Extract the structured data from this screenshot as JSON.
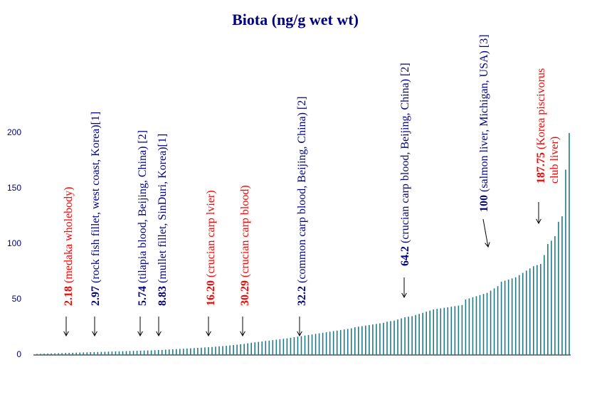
{
  "chart_data": {
    "type": "bar",
    "title": "Biota (ng/g wet wt)",
    "color": "#1f7a86",
    "ylim": [
      0,
      200
    ],
    "yticks": [
      0,
      50,
      100,
      150,
      200
    ],
    "values": [
      1.0,
      1.1,
      1.2,
      1.3,
      1.4,
      1.5,
      1.6,
      1.7,
      1.8,
      1.9,
      2.0,
      2.1,
      2.2,
      2.3,
      2.4,
      2.5,
      2.6,
      2.7,
      2.8,
      2.9,
      3.0,
      3.1,
      3.2,
      3.3,
      3.4,
      3.5,
      3.6,
      3.7,
      3.8,
      3.9,
      4.0,
      4.1,
      4.2,
      4.3,
      4.5,
      4.6,
      4.8,
      5.0,
      5.1,
      5.3,
      5.5,
      5.6,
      5.8,
      6.0,
      6.2,
      6.4,
      6.6,
      6.8,
      7.0,
      7.2,
      7.5,
      7.8,
      8.0,
      8.3,
      8.6,
      9.0,
      9.3,
      9.7,
      10.0,
      10.5,
      11,
      11.4,
      11.8,
      12.2,
      12.6,
      13,
      13.4,
      13.8,
      14.2,
      14.6,
      15,
      15.5,
      16,
      16.5,
      17,
      17.5,
      18,
      18.5,
      19,
      19.5,
      20,
      20.5,
      21,
      21.5,
      22,
      22.5,
      23,
      23.5,
      24,
      25,
      25.5,
      26,
      26.5,
      27,
      27.5,
      28,
      28.5,
      29,
      30,
      30.5,
      31,
      32,
      33,
      34,
      34.5,
      35,
      36,
      37,
      38,
      39,
      40,
      41,
      41.5,
      42,
      42.5,
      43,
      43.5,
      44,
      44.5,
      45,
      50,
      51,
      52,
      53,
      54,
      55,
      56,
      58,
      60,
      62,
      66,
      67,
      68,
      69,
      70,
      72,
      74,
      76,
      78,
      80,
      81,
      82,
      90,
      100,
      103,
      107,
      120,
      125,
      167,
      200
    ],
    "annotations": [
      {
        "label": "2.18",
        "color": "#ff0000",
        "lines": [
          "(medaka wholebody)"
        ]
      },
      {
        "label": "2.97",
        "color": "#000080",
        "lines": [
          "(rock fish fillet,  west coast, Korea)[1]"
        ]
      },
      {
        "label": "5.74",
        "color": "#000080",
        "lines": [
          "(tilapia  blood, Beijing,   China) [2]"
        ]
      },
      {
        "label": "8.83",
        "color": "#000080",
        "lines": [
          "(mullet  fillet,  SinDuri,  Korea)[1]"
        ]
      },
      {
        "label": "16.20",
        "color": "#ff0000",
        "lines": [
          "(crucian carp lvier)"
        ]
      },
      {
        "label": "30.29",
        "color": "#ff0000",
        "lines": [
          "(crucian carp blood)"
        ]
      },
      {
        "label": "32.2",
        "color": "#000080",
        "lines": [
          "(common carp blood, Beijing,  China) [2]"
        ]
      },
      {
        "label": "64.2",
        "color": "#000080",
        "lines": [
          "(crucian carp blood, Beijing,   China)  [2]"
        ]
      },
      {
        "label": "100",
        "color": "#000080",
        "lines": [
          "(salmon liver,  Michigan,  USA) [3]"
        ]
      },
      {
        "label": "187.75",
        "color": "#ff0000",
        "lines": [
          "(Korea piscivorus",
          "club liver)"
        ]
      }
    ]
  }
}
